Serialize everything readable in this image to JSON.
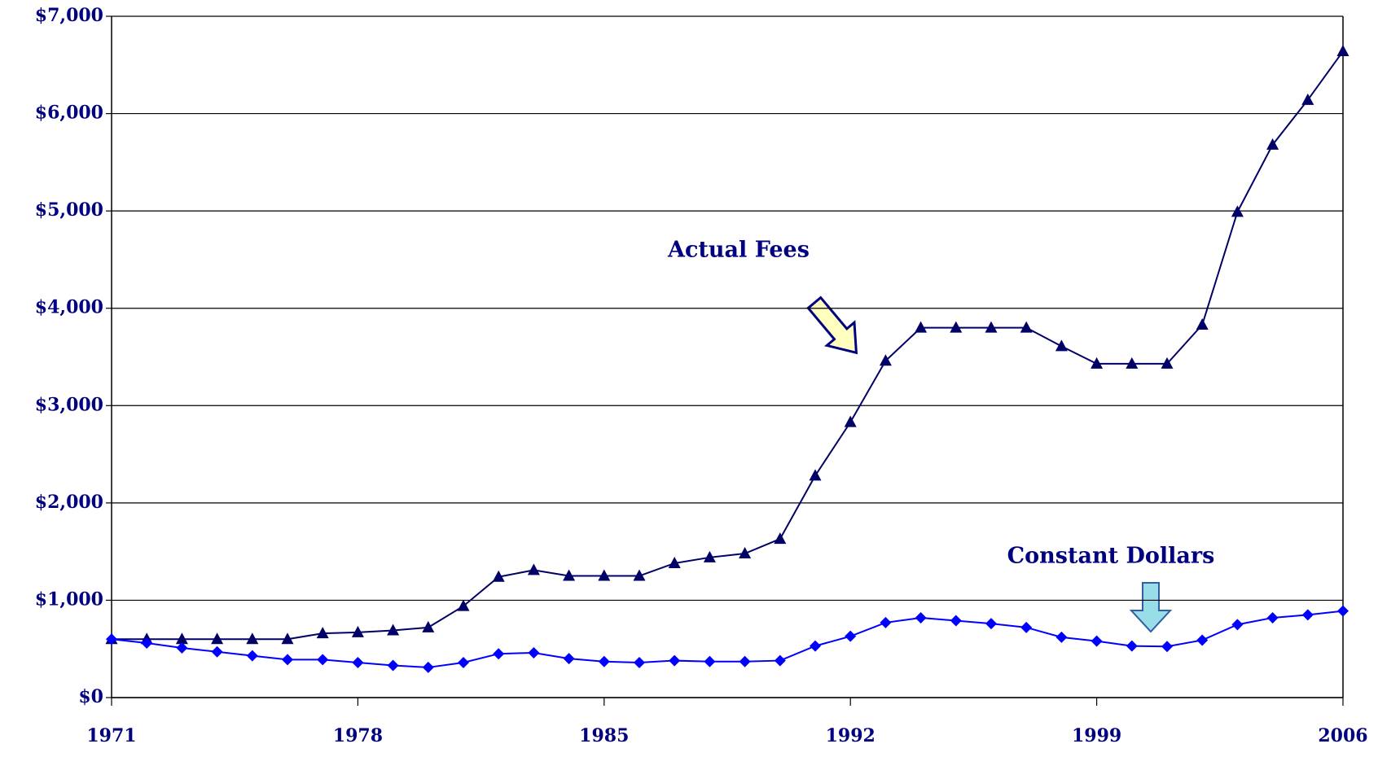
{
  "chart_data": {
    "type": "line",
    "x": [
      1971,
      1972,
      1973,
      1974,
      1975,
      1976,
      1977,
      1978,
      1979,
      1980,
      1981,
      1982,
      1983,
      1984,
      1985,
      1986,
      1987,
      1988,
      1989,
      1990,
      1991,
      1992,
      1993,
      1994,
      1995,
      1996,
      1997,
      1998,
      1999,
      2000,
      2001,
      2002,
      2003,
      2004,
      2005,
      2006
    ],
    "series": [
      {
        "name": "Actual Fees",
        "color": "#000066",
        "marker": "triangle",
        "values": [
          600,
          600,
          600,
          600,
          600,
          600,
          660,
          670,
          690,
          720,
          940,
          1240,
          1310,
          1250,
          1250,
          1250,
          1380,
          1440,
          1480,
          1630,
          2280,
          2830,
          3460,
          3800,
          3800,
          3800,
          3800,
          3610,
          3430,
          3430,
          3430,
          3830,
          4990,
          5680,
          6140,
          6640
        ]
      },
      {
        "name": "Constant Dollars",
        "color": "#0000ff",
        "marker": "diamond",
        "values": [
          600,
          560,
          510,
          470,
          430,
          390,
          390,
          360,
          330,
          310,
          360,
          450,
          460,
          400,
          370,
          360,
          380,
          370,
          370,
          380,
          530,
          630,
          770,
          820,
          790,
          760,
          720,
          620,
          580,
          530,
          525,
          590,
          750,
          820,
          850,
          890
        ]
      }
    ],
    "xlim": [
      1971,
      2006
    ],
    "xticks": [
      1971,
      1978,
      1985,
      1992,
      1999,
      2006
    ],
    "ylim": [
      0,
      7000
    ],
    "yticks": [
      {
        "value": 0,
        "label": "$0"
      },
      {
        "value": 1000,
        "label": "$1,000"
      },
      {
        "value": 2000,
        "label": "$2,000"
      },
      {
        "value": 3000,
        "label": "$3,000"
      },
      {
        "value": 4000,
        "label": "$4,000"
      },
      {
        "value": 5000,
        "label": "$5,000"
      },
      {
        "value": 6000,
        "label": "$6,000"
      },
      {
        "value": 7000,
        "label": "$7,000"
      }
    ],
    "grid": true
  }
}
